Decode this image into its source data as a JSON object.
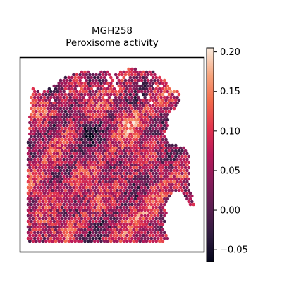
{
  "chart_data": {
    "type": "scatter",
    "subtype": "spatial-hexbin",
    "title_line1": "MGH258",
    "title_line2": "Peroxisome activity",
    "xlabel": "",
    "ylabel": "",
    "colorbar": {
      "colormap": "rocket",
      "range": [
        -0.065,
        0.205
      ],
      "ticks": [
        -0.05,
        0.0,
        0.05,
        0.1,
        0.15,
        0.2
      ],
      "tick_labels": [
        "−0.05",
        "0.00",
        "0.05",
        "0.10",
        "0.15",
        "0.20"
      ]
    },
    "grid": false,
    "legend": "colorbar-right",
    "colors": {
      "low": "#0b0518",
      "mid": "#b11d5b",
      "high": "#faebdd",
      "frame": "#000000"
    }
  }
}
